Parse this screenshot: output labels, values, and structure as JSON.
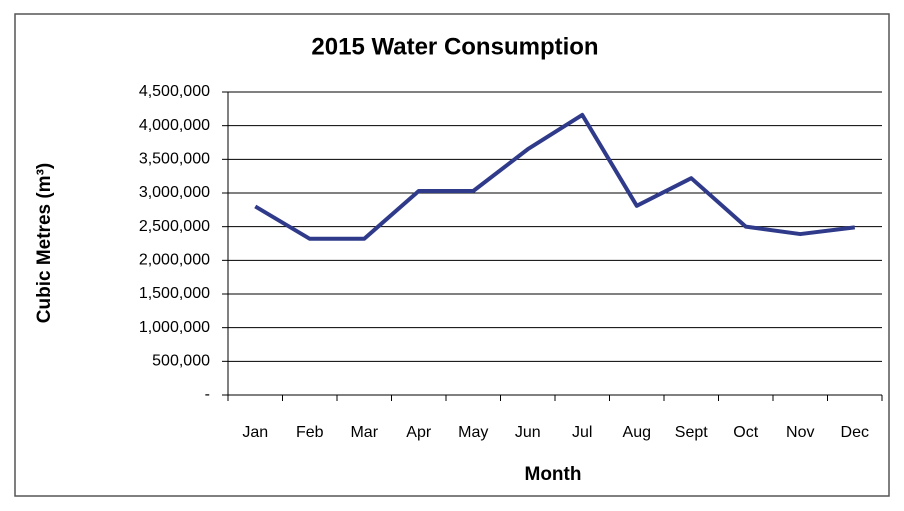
{
  "chart_data": {
    "type": "line",
    "title": "2015 Water Consumption",
    "xlabel": "Month",
    "ylabel": "Cubic Metres (m³)",
    "categories": [
      "Jan",
      "Feb",
      "Mar",
      "Apr",
      "May",
      "Jun",
      "Jul",
      "Aug",
      "Sept",
      "Oct",
      "Nov",
      "Dec"
    ],
    "series": [
      {
        "name": "2015",
        "color": "#2f3b8a",
        "values": [
          2800000,
          2320000,
          2320000,
          3030000,
          3030000,
          3650000,
          4160000,
          2810000,
          3220000,
          2500000,
          2390000,
          2490000
        ]
      }
    ],
    "ylim": [
      0,
      4500000
    ],
    "yticks": [
      {
        "value": 0,
        "label": "-"
      },
      {
        "value": 500000,
        "label": "500,000"
      },
      {
        "value": 1000000,
        "label": "1,000,000"
      },
      {
        "value": 1500000,
        "label": "1,500,000"
      },
      {
        "value": 2000000,
        "label": "2,000,000"
      },
      {
        "value": 2500000,
        "label": "2,500,000"
      },
      {
        "value": 3000000,
        "label": "3,000,000"
      },
      {
        "value": 3500000,
        "label": "3,500,000"
      },
      {
        "value": 4000000,
        "label": "4,000,000"
      },
      {
        "value": 4500000,
        "label": "4,500,000"
      }
    ],
    "grid": true,
    "legend": false
  }
}
